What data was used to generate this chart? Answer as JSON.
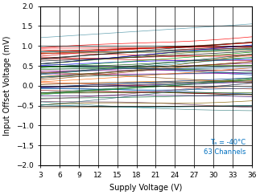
{
  "title": "",
  "xlabel": "Supply Voltage (V)",
  "ylabel": "Input Offset Voltage (mV)",
  "xlim": [
    3,
    36
  ],
  "ylim": [
    -2,
    2
  ],
  "xticks": [
    3,
    6,
    9,
    12,
    15,
    18,
    21,
    24,
    27,
    30,
    33,
    36
  ],
  "yticks": [
    -2,
    -1.5,
    -1,
    -0.5,
    0,
    0.5,
    1,
    1.5,
    2
  ],
  "annotation_text": "Tₐ = -40°C\n63 Channels",
  "annotation_color": "#0070C0",
  "n_channels": 63,
  "x_start": 3,
  "x_end": 36,
  "seed": 12345
}
